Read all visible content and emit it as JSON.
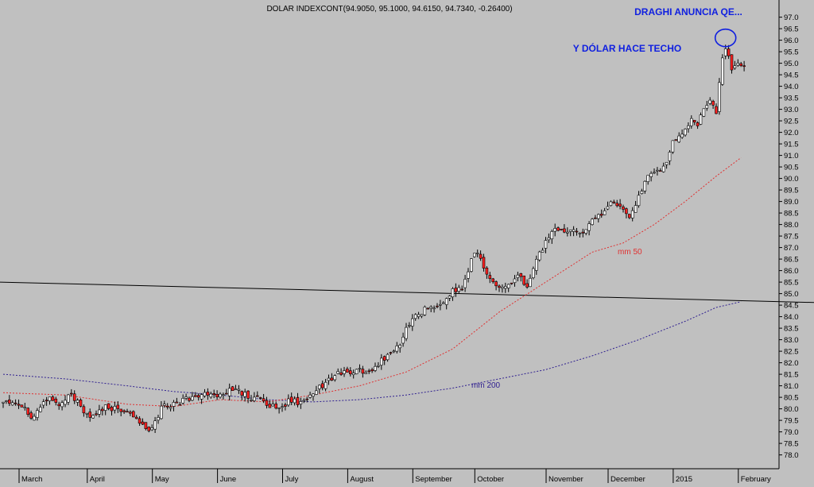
{
  "chart_data": {
    "type": "candlestick",
    "title": "DOLAR INDEXCONT(94.9050, 95.1000, 94.6150, 94.7340, -0.26400)",
    "annotations": {
      "top": "DRAGHI ANUNCIA QE...",
      "sub": "Y DÓLAR HACE TECHO"
    },
    "series_labels": {
      "ma50": "mm 50",
      "ma200": "mm 200"
    },
    "y_axis": {
      "range": [
        77.4,
        97.4
      ],
      "step": 0.5,
      "ticks": [
        "97.0",
        "96.5",
        "96.0",
        "95.5",
        "95.0",
        "94.5",
        "94.0",
        "93.5",
        "93.0",
        "92.5",
        "92.0",
        "91.5",
        "91.0",
        "90.5",
        "90.0",
        "89.5",
        "89.0",
        "88.5",
        "88.0",
        "87.5",
        "87.0",
        "86.5",
        "86.0",
        "85.5",
        "85.0",
        "84.5",
        "84.0",
        "83.5",
        "83.0",
        "82.5",
        "82.0",
        "81.5",
        "81.0",
        "80.5",
        "80.0",
        "79.5",
        "79.0",
        "78.5",
        "78.0"
      ]
    },
    "x_axis": {
      "months": [
        "March",
        "April",
        "May",
        "June",
        "July",
        "August",
        "September",
        "October",
        "November",
        "December",
        "2015",
        "February"
      ],
      "month_starts": [
        0,
        22,
        43,
        64,
        85,
        106,
        127,
        147,
        170,
        190,
        211,
        232
      ]
    },
    "trendline": {
      "start": [
        0,
        85.5
      ],
      "end": [
        247,
        84.65
      ]
    },
    "close_anchors": [
      [
        0,
        80.3
      ],
      [
        6,
        80.1
      ],
      [
        10,
        79.6
      ],
      [
        12,
        80.2
      ],
      [
        15,
        80.4
      ],
      [
        18,
        80.2
      ],
      [
        22,
        80.6
      ],
      [
        26,
        79.9
      ],
      [
        29,
        79.6
      ],
      [
        33,
        80.1
      ],
      [
        37,
        80.0
      ],
      [
        41,
        79.8
      ],
      [
        45,
        79.3
      ],
      [
        48,
        79.1
      ],
      [
        51,
        80.1
      ],
      [
        55,
        80.2
      ],
      [
        59,
        80.4
      ],
      [
        63,
        80.6
      ],
      [
        67,
        80.7
      ],
      [
        70,
        80.6
      ],
      [
        73,
        80.8
      ],
      [
        77,
        80.7
      ],
      [
        80,
        80.5
      ],
      [
        83,
        80.4
      ],
      [
        86,
        80.1
      ],
      [
        89,
        80.0
      ],
      [
        92,
        80.3
      ],
      [
        96,
        80.3
      ],
      [
        99,
        80.6
      ],
      [
        102,
        80.9
      ],
      [
        105,
        81.3
      ],
      [
        108,
        81.5
      ],
      [
        111,
        81.6
      ],
      [
        115,
        81.7
      ],
      [
        118,
        81.6
      ],
      [
        121,
        82.0
      ],
      [
        124,
        82.3
      ],
      [
        127,
        82.6
      ],
      [
        130,
        83.4
      ],
      [
        133,
        84.0
      ],
      [
        136,
        84.3
      ],
      [
        139,
        84.4
      ],
      [
        142,
        84.6
      ],
      [
        145,
        85.1
      ],
      [
        148,
        85.3
      ],
      [
        151,
        86.4
      ],
      [
        153,
        86.9
      ],
      [
        155,
        86.0
      ],
      [
        157,
        85.7
      ],
      [
        160,
        85.2
      ],
      [
        163,
        85.4
      ],
      [
        166,
        85.8
      ],
      [
        169,
        85.3
      ],
      [
        172,
        86.5
      ],
      [
        175,
        87.2
      ],
      [
        178,
        87.9
      ],
      [
        181,
        87.6
      ],
      [
        184,
        87.8
      ],
      [
        187,
        87.7
      ],
      [
        190,
        88.1
      ],
      [
        193,
        88.4
      ],
      [
        196,
        89.1
      ],
      [
        199,
        88.7
      ],
      [
        202,
        88.2
      ],
      [
        205,
        89.3
      ],
      [
        208,
        90.0
      ],
      [
        211,
        90.3
      ],
      [
        214,
        90.6
      ],
      [
        216,
        91.6
      ],
      [
        218,
        91.8
      ],
      [
        220,
        92.2
      ],
      [
        222,
        92.6
      ],
      [
        224,
        92.3
      ],
      [
        226,
        93.0
      ],
      [
        228,
        93.3
      ],
      [
        230,
        92.8
      ],
      [
        231,
        94.2
      ],
      [
        232,
        95.2
      ],
      [
        233,
        95.6
      ],
      [
        234,
        95.2
      ],
      [
        235,
        94.6
      ],
      [
        236,
        94.9
      ],
      [
        237,
        95.0
      ],
      [
        238,
        94.8
      ],
      [
        239,
        94.73
      ]
    ],
    "ma50_anchors": [
      [
        0,
        80.7
      ],
      [
        20,
        80.6
      ],
      [
        40,
        80.2
      ],
      [
        55,
        80.1
      ],
      [
        70,
        80.4
      ],
      [
        85,
        80.3
      ],
      [
        100,
        80.6
      ],
      [
        115,
        81.0
      ],
      [
        130,
        81.6
      ],
      [
        145,
        82.6
      ],
      [
        160,
        84.2
      ],
      [
        175,
        85.5
      ],
      [
        190,
        86.8
      ],
      [
        200,
        87.2
      ],
      [
        210,
        88.0
      ],
      [
        220,
        89.0
      ],
      [
        230,
        90.1
      ],
      [
        238,
        90.9
      ]
    ],
    "ma200_anchors": [
      [
        0,
        81.5
      ],
      [
        20,
        81.3
      ],
      [
        40,
        81.0
      ],
      [
        55,
        80.75
      ],
      [
        70,
        80.6
      ],
      [
        85,
        80.4
      ],
      [
        100,
        80.3
      ],
      [
        115,
        80.4
      ],
      [
        130,
        80.6
      ],
      [
        145,
        80.9
      ],
      [
        160,
        81.3
      ],
      [
        175,
        81.7
      ],
      [
        190,
        82.3
      ],
      [
        205,
        83.0
      ],
      [
        220,
        83.8
      ],
      [
        230,
        84.4
      ],
      [
        238,
        84.65
      ]
    ],
    "highlight_marker": {
      "x": 233,
      "y": 96.1,
      "color": "#1020e0"
    },
    "colors": {
      "background": "#c0c0c0",
      "up": "#ffffff",
      "down": "#ff2020",
      "wick": "#000000",
      "ma50": "#e03030",
      "ma200": "#302090",
      "annotation": "#1020e0",
      "trendline": "#000000"
    },
    "grid": false,
    "legend": "none"
  }
}
